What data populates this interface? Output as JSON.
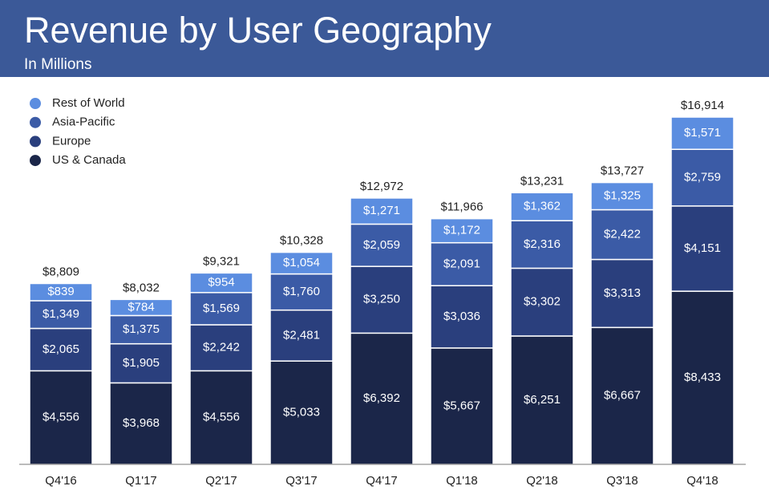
{
  "chart_data": {
    "type": "stacked_bar",
    "title": "Revenue by User Geography",
    "subtitle": "In Millions",
    "categories": [
      "Q4'16",
      "Q1'17",
      "Q2'17",
      "Q3'17",
      "Q4'17",
      "Q1'18",
      "Q2'18",
      "Q3'18",
      "Q4'18"
    ],
    "series": [
      {
        "name": "US & Canada",
        "color": "#1b2649",
        "values": [
          4556,
          3968,
          4556,
          5033,
          6392,
          5667,
          6251,
          6667,
          8433
        ],
        "value_labels": [
          "$4,556",
          "$3,968",
          "$4,556",
          "$5,033",
          "$6,392",
          "$5,667",
          "$6,251",
          "$6,667",
          "$8,433"
        ]
      },
      {
        "name": "Europe",
        "color": "#2a3f7d",
        "values": [
          2065,
          1905,
          2242,
          2481,
          3250,
          3036,
          3302,
          3313,
          4151
        ],
        "value_labels": [
          "$2,065",
          "$1,905",
          "$2,242",
          "$2,481",
          "$3,250",
          "$3,036",
          "$3,302",
          "$3,313",
          "$4,151"
        ]
      },
      {
        "name": "Asia-Pacific",
        "color": "#3b5ba6",
        "values": [
          1349,
          1375,
          1569,
          1760,
          2059,
          2091,
          2316,
          2422,
          2759
        ],
        "value_labels": [
          "$1,349",
          "$1,375",
          "$1,569",
          "$1,760",
          "$2,059",
          "$2,091",
          "$2,316",
          "$2,422",
          "$2,759"
        ]
      },
      {
        "name": "Rest of World",
        "color": "#5b8de0",
        "values": [
          839,
          784,
          954,
          1054,
          1271,
          1172,
          1362,
          1325,
          1571
        ],
        "value_labels": [
          "$839",
          "$784",
          "$954",
          "$1,054",
          "$1,271",
          "$1,172",
          "$1,362",
          "$1,325",
          "$1,571"
        ]
      }
    ],
    "totals": {
      "values": [
        8809,
        8032,
        9321,
        10328,
        12972,
        11966,
        13231,
        13727,
        16914
      ],
      "value_labels": [
        "$8,809",
        "$8,032",
        "$9,321",
        "$10,328",
        "$12,972",
        "$11,966",
        "$13,231",
        "$13,727",
        "$16,914"
      ]
    },
    "legend": "upper left"
  }
}
